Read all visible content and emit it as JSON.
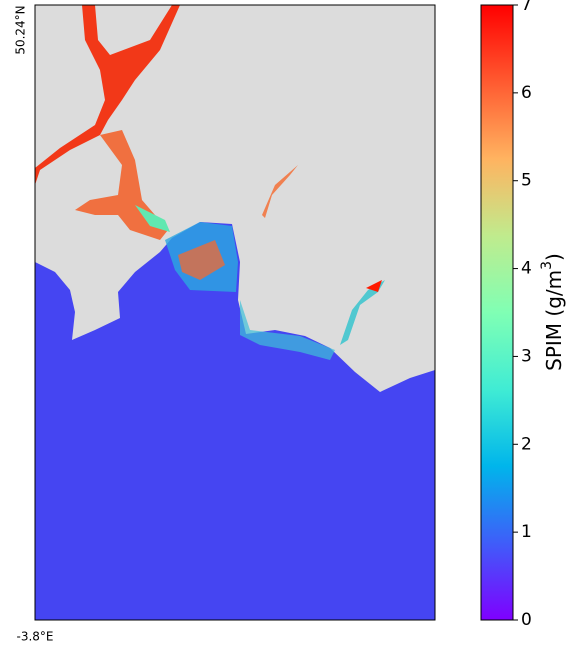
{
  "map": {
    "lat_label": "50.24°N",
    "lon_label": "-3.8°E"
  },
  "colorbar": {
    "label": "SPIM (g/m",
    "label_sup": "3",
    "label_end": ")",
    "lim": [
      0,
      7
    ],
    "ticks": [
      0,
      1,
      2,
      3,
      4,
      5,
      6,
      7
    ],
    "colors": [
      "#7f00ff",
      "#3f5df9",
      "#00b5eb",
      "#40ecd4",
      "#80ffb4",
      "#c0eb8d",
      "#ffb360",
      "#ff5a30",
      "#ff0000"
    ]
  }
}
